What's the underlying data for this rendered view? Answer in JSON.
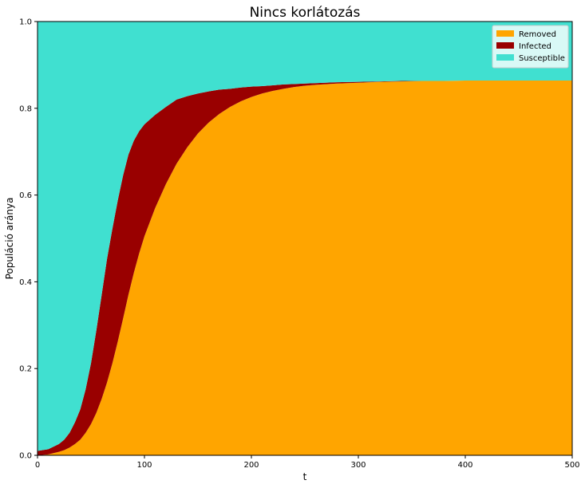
{
  "chart_data": {
    "type": "area",
    "stacked": true,
    "title": "Nincs korlátozás",
    "xlabel": "t",
    "ylabel": "Populáció aránya",
    "xlim": [
      0,
      500
    ],
    "ylim": [
      0,
      1.0
    ],
    "xticks": [
      0,
      100,
      200,
      300,
      400,
      500
    ],
    "yticks": [
      "0.0",
      "0.2",
      "0.4",
      "0.6",
      "0.8",
      "1.0"
    ],
    "grid": false,
    "legend_position": "top-right",
    "x": [
      0,
      10,
      20,
      25,
      30,
      35,
      40,
      45,
      50,
      55,
      60,
      65,
      70,
      75,
      80,
      85,
      90,
      95,
      100,
      110,
      120,
      130,
      140,
      150,
      160,
      170,
      180,
      190,
      200,
      210,
      220,
      230,
      240,
      250,
      260,
      280,
      300,
      320,
      340,
      360,
      380,
      400,
      420,
      440,
      460,
      480,
      500
    ],
    "series": [
      {
        "name": "Removed",
        "color": "#ffa500",
        "values": [
          0.0,
          0.002,
          0.008,
          0.012,
          0.018,
          0.026,
          0.036,
          0.052,
          0.072,
          0.098,
          0.13,
          0.168,
          0.212,
          0.262,
          0.315,
          0.37,
          0.42,
          0.465,
          0.505,
          0.57,
          0.625,
          0.672,
          0.71,
          0.742,
          0.767,
          0.787,
          0.803,
          0.816,
          0.826,
          0.834,
          0.84,
          0.845,
          0.849,
          0.852,
          0.854,
          0.857,
          0.859,
          0.861,
          0.862,
          0.863,
          0.863,
          0.864,
          0.864,
          0.864,
          0.864,
          0.864,
          0.864
        ]
      },
      {
        "name": "Infected",
        "color": "#990000",
        "values": [
          0.01,
          0.012,
          0.018,
          0.024,
          0.034,
          0.05,
          0.07,
          0.1,
          0.14,
          0.19,
          0.24,
          0.285,
          0.31,
          0.325,
          0.33,
          0.323,
          0.305,
          0.282,
          0.258,
          0.215,
          0.178,
          0.148,
          0.118,
          0.092,
          0.072,
          0.056,
          0.042,
          0.032,
          0.024,
          0.017,
          0.013,
          0.01,
          0.007,
          0.005,
          0.004,
          0.003,
          0.002,
          0.001,
          0.001,
          0.0,
          0.0,
          0.0,
          0.0,
          0.0,
          0.0,
          0.0,
          0.0
        ]
      },
      {
        "name": "Susceptible",
        "color": "#40e0d0",
        "values": [
          0.99,
          0.986,
          0.974,
          0.964,
          0.948,
          0.924,
          0.894,
          0.848,
          0.788,
          0.712,
          0.63,
          0.547,
          0.478,
          0.413,
          0.355,
          0.307,
          0.275,
          0.253,
          0.237,
          0.215,
          0.197,
          0.18,
          0.172,
          0.166,
          0.161,
          0.157,
          0.155,
          0.152,
          0.15,
          0.149,
          0.147,
          0.145,
          0.144,
          0.143,
          0.142,
          0.14,
          0.139,
          0.138,
          0.137,
          0.137,
          0.137,
          0.136,
          0.136,
          0.136,
          0.136,
          0.136,
          0.136
        ]
      }
    ]
  }
}
